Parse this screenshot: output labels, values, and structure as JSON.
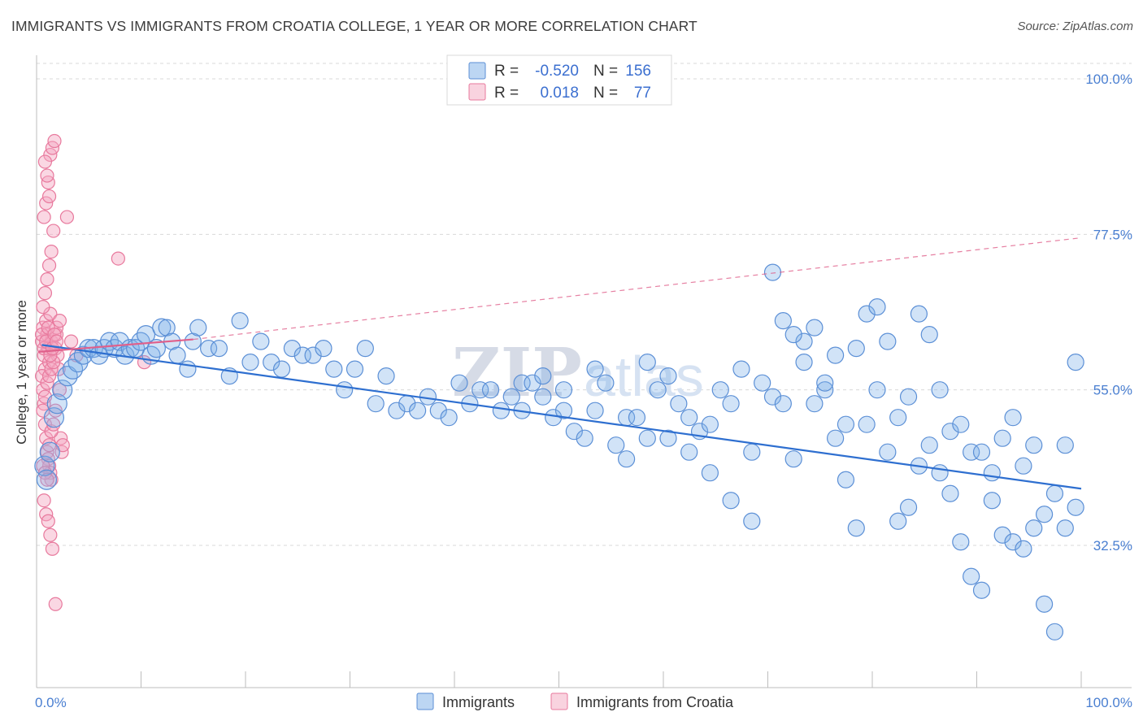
{
  "header": {
    "title": "IMMIGRANTS VS IMMIGRANTS FROM CROATIA COLLEGE, 1 YEAR OR MORE CORRELATION CHART",
    "source": "Source: ZipAtlas.com"
  },
  "watermark": {
    "zip": "ZIP",
    "atlas": "atlas"
  },
  "colors": {
    "immigrants": "#7aaee8",
    "immigrants_stroke": "#5b8fd6",
    "croatia": "#f4a7c0",
    "croatia_stroke": "#e8799d",
    "trend_blue": "#2e6fd0",
    "trend_pink": "#e0608b",
    "grid": "#d9d9d9",
    "tick_text": "#4a7fd1"
  },
  "legend": {
    "rows": [
      {
        "r_label": "R =",
        "r_value": "-0.520",
        "n_label": "N =",
        "n_value": "156"
      },
      {
        "r_label": "R =",
        "r_value": "0.018",
        "n_label": "N =",
        "n_value": "77"
      }
    ]
  },
  "chart_data": {
    "type": "scatter",
    "title": "IMMIGRANTS VS IMMIGRANTS FROM CROATIA COLLEGE, 1 YEAR OR MORE CORRELATION CHART",
    "xlabel": "",
    "ylabel": "College, 1 year or more",
    "xlim": [
      0,
      100
    ],
    "ylim": [
      10,
      100
    ],
    "x_tick_labels": [
      "0.0%",
      "100.0%"
    ],
    "y_ticks": [
      32.5,
      55.0,
      77.5,
      100.0
    ],
    "y_tick_labels": [
      "32.5%",
      "55.0%",
      "77.5%",
      "100.0%"
    ],
    "grid": true,
    "legend_position": "top-center",
    "series": [
      {
        "name": "Immigrants",
        "r": -0.52,
        "n": 156,
        "trend": {
          "x": [
            0.5,
            100
          ],
          "y": [
            61.5,
            40.7
          ]
        },
        "points": [
          [
            0.3,
            44
          ],
          [
            0.5,
            42
          ],
          [
            0.8,
            46
          ],
          [
            1.2,
            51
          ],
          [
            1.5,
            53
          ],
          [
            2.0,
            55
          ],
          [
            2.5,
            57
          ],
          [
            3,
            58
          ],
          [
            3.5,
            59
          ],
          [
            4,
            60
          ],
          [
            4.5,
            61
          ],
          [
            5,
            61
          ],
          [
            5.5,
            60
          ],
          [
            6,
            61
          ],
          [
            6.5,
            62
          ],
          [
            7,
            61
          ],
          [
            7.5,
            62
          ],
          [
            8,
            60
          ],
          [
            8.5,
            61
          ],
          [
            9,
            61
          ],
          [
            9.5,
            62
          ],
          [
            10,
            63
          ],
          [
            10.5,
            60
          ],
          [
            11,
            61
          ],
          [
            11.5,
            64
          ],
          [
            12,
            64
          ],
          [
            12.5,
            62
          ],
          [
            13,
            60
          ],
          [
            14,
            58
          ],
          [
            14.5,
            62
          ],
          [
            15,
            64
          ],
          [
            16,
            61
          ],
          [
            17,
            61
          ],
          [
            18,
            57
          ],
          [
            19,
            65
          ],
          [
            20,
            59
          ],
          [
            21,
            62
          ],
          [
            22,
            59
          ],
          [
            23,
            58
          ],
          [
            24,
            61
          ],
          [
            25,
            60
          ],
          [
            26,
            60
          ],
          [
            27,
            61
          ],
          [
            28,
            58
          ],
          [
            29,
            55
          ],
          [
            30,
            58
          ],
          [
            31,
            61
          ],
          [
            32,
            53
          ],
          [
            33,
            57
          ],
          [
            34,
            52
          ],
          [
            35,
            53
          ],
          [
            36,
            52
          ],
          [
            37,
            54
          ],
          [
            38,
            52
          ],
          [
            39,
            51
          ],
          [
            40,
            56
          ],
          [
            41,
            53
          ],
          [
            42,
            55
          ],
          [
            43,
            55
          ],
          [
            44,
            52
          ],
          [
            45,
            54
          ],
          [
            46,
            56
          ],
          [
            47,
            56
          ],
          [
            48,
            57
          ],
          [
            49,
            51
          ],
          [
            50,
            52
          ],
          [
            51,
            49
          ],
          [
            52,
            48
          ],
          [
            53,
            52
          ],
          [
            54,
            56
          ],
          [
            55,
            47
          ],
          [
            56,
            51
          ],
          [
            57,
            51
          ],
          [
            58,
            59
          ],
          [
            59,
            55
          ],
          [
            60,
            57
          ],
          [
            61,
            53
          ],
          [
            62,
            51
          ],
          [
            63,
            49
          ],
          [
            64,
            50
          ],
          [
            65,
            55
          ],
          [
            66,
            53
          ],
          [
            67,
            58
          ],
          [
            68,
            46
          ],
          [
            69,
            56
          ],
          [
            70,
            54
          ],
          [
            71,
            53
          ],
          [
            72,
            45
          ],
          [
            73,
            62
          ],
          [
            74,
            53
          ],
          [
            75,
            55
          ],
          [
            76,
            48
          ],
          [
            77,
            50
          ],
          [
            78,
            61
          ],
          [
            79,
            50
          ],
          [
            80,
            55
          ],
          [
            81,
            46
          ],
          [
            82,
            51
          ],
          [
            83,
            54
          ],
          [
            84,
            44
          ],
          [
            85,
            47
          ],
          [
            86,
            43
          ],
          [
            87,
            49
          ],
          [
            88,
            50
          ],
          [
            89,
            46
          ],
          [
            90,
            46
          ],
          [
            91,
            43
          ],
          [
            92,
            48
          ],
          [
            93,
            51
          ],
          [
            94,
            44
          ],
          [
            95,
            47
          ],
          [
            96,
            37
          ],
          [
            97,
            40
          ],
          [
            98,
            35
          ],
          [
            99,
            38
          ],
          [
            60,
            48
          ],
          [
            62,
            46
          ],
          [
            64,
            43
          ],
          [
            66,
            39
          ],
          [
            68,
            36
          ],
          [
            70,
            72
          ],
          [
            71,
            65
          ],
          [
            72,
            63
          ],
          [
            73,
            59
          ],
          [
            74,
            64
          ],
          [
            75,
            56
          ],
          [
            76,
            60
          ],
          [
            77,
            42
          ],
          [
            78,
            35
          ],
          [
            79,
            66
          ],
          [
            80,
            67
          ],
          [
            81,
            62
          ],
          [
            82,
            36
          ],
          [
            83,
            38
          ],
          [
            84,
            66
          ],
          [
            85,
            63
          ],
          [
            86,
            55
          ],
          [
            87,
            40
          ],
          [
            88,
            33
          ],
          [
            89,
            28
          ],
          [
            90,
            26
          ],
          [
            91,
            39
          ],
          [
            92,
            34
          ],
          [
            93,
            33
          ],
          [
            94,
            32
          ],
          [
            95,
            35
          ],
          [
            96,
            24
          ],
          [
            97,
            20
          ],
          [
            98,
            47
          ],
          [
            99,
            59
          ],
          [
            56,
            45
          ],
          [
            58,
            48
          ],
          [
            53,
            58
          ],
          [
            50,
            55
          ],
          [
            48,
            54
          ],
          [
            46,
            52
          ]
        ]
      },
      {
        "name": "Immigrants from Croatia",
        "r": 0.018,
        "n": 77,
        "trend": {
          "x": [
            0.2,
            15
          ],
          "y": [
            60.5,
            62.3
          ]
        },
        "trend_extension": {
          "x": [
            15,
            100
          ],
          "y": [
            62.3,
            77.0
          ]
        },
        "points": [
          [
            0.2,
            62
          ],
          [
            0.3,
            64
          ],
          [
            0.4,
            60
          ],
          [
            0.5,
            58
          ],
          [
            0.6,
            65
          ],
          [
            0.7,
            63
          ],
          [
            0.8,
            61
          ],
          [
            0.9,
            59
          ],
          [
            1.0,
            66
          ],
          [
            1.1,
            62
          ],
          [
            0.2,
            57
          ],
          [
            0.3,
            55
          ],
          [
            0.4,
            53
          ],
          [
            0.5,
            50
          ],
          [
            0.6,
            48
          ],
          [
            0.7,
            46
          ],
          [
            0.8,
            45
          ],
          [
            0.9,
            44
          ],
          [
            1.0,
            43
          ],
          [
            1.1,
            42
          ],
          [
            0.3,
            67
          ],
          [
            0.5,
            69
          ],
          [
            0.7,
            71
          ],
          [
            0.9,
            73
          ],
          [
            1.1,
            75
          ],
          [
            1.3,
            78
          ],
          [
            0.4,
            80
          ],
          [
            0.6,
            82
          ],
          [
            0.8,
            85
          ],
          [
            1.0,
            89
          ],
          [
            1.2,
            90
          ],
          [
            1.4,
            91
          ],
          [
            0.5,
            88
          ],
          [
            0.7,
            86
          ],
          [
            0.9,
            83
          ],
          [
            1.5,
            61
          ],
          [
            1.6,
            63
          ],
          [
            1.7,
            60
          ],
          [
            1.8,
            58
          ],
          [
            1.9,
            55
          ],
          [
            2.0,
            48
          ],
          [
            2.1,
            46
          ],
          [
            0.4,
            39
          ],
          [
            0.6,
            37
          ],
          [
            0.8,
            36
          ],
          [
            1.0,
            34
          ],
          [
            1.2,
            32
          ],
          [
            1.5,
            24
          ],
          [
            0.3,
            52
          ],
          [
            0.5,
            54
          ],
          [
            0.7,
            56
          ],
          [
            0.9,
            57
          ],
          [
            1.1,
            58
          ],
          [
            1.3,
            59
          ],
          [
            1.6,
            64
          ],
          [
            1.9,
            65
          ],
          [
            2.2,
            47
          ],
          [
            2.6,
            80
          ],
          [
            3.0,
            62
          ],
          [
            3.5,
            60
          ],
          [
            7.5,
            74
          ],
          [
            10,
            59
          ],
          [
            0.2,
            63
          ],
          [
            0.4,
            61
          ],
          [
            0.6,
            62
          ],
          [
            0.8,
            64
          ],
          [
            1.0,
            60
          ],
          [
            1.2,
            61
          ],
          [
            1.4,
            63
          ],
          [
            1.6,
            62
          ],
          [
            0.3,
            44
          ],
          [
            0.5,
            43
          ],
          [
            0.7,
            42
          ],
          [
            0.9,
            47
          ],
          [
            1.1,
            49
          ],
          [
            1.3,
            50
          ],
          [
            1.5,
            52
          ]
        ]
      }
    ]
  },
  "bottom_legend": {
    "items": [
      "Immigrants",
      "Immigrants from Croatia"
    ]
  }
}
